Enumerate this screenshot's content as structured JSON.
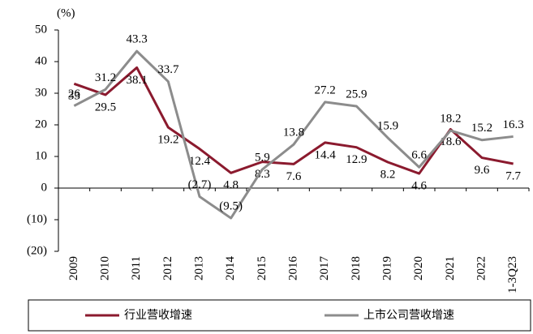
{
  "chart_data": {
    "type": "line",
    "y_label": "(%)",
    "categories": [
      "2009",
      "2010",
      "2011",
      "2012",
      "2013",
      "2014",
      "2015",
      "2016",
      "2017",
      "2018",
      "2019",
      "2020",
      "2021",
      "2022",
      "1-3Q23"
    ],
    "series": [
      {
        "name": "行业营收增速",
        "color": "#8b1a2e",
        "values": [
          33,
          29.5,
          38.1,
          19.2,
          12.4,
          4.8,
          8.3,
          7.6,
          14.4,
          12.9,
          8.2,
          4.6,
          18.6,
          9.6,
          7.7
        ]
      },
      {
        "name": "上市公司营收增速",
        "color": "#8c8c8c",
        "values": [
          26,
          31.2,
          43.3,
          33.7,
          -2.7,
          -9.5,
          5.9,
          13.8,
          27.2,
          25.9,
          15.9,
          6.6,
          18.2,
          15.2,
          16.3
        ],
        "value_labels": [
          "26",
          "31.2",
          "43.3",
          "33.7",
          "(2.7)",
          "(9.5)",
          "5.9",
          "13.8",
          "27.2",
          "25.9",
          "15.9",
          "6.6",
          "18.2",
          "15.2",
          "16.3"
        ]
      }
    ],
    "ylim": [
      -20,
      50
    ],
    "yticks": [
      {
        "value": -20,
        "label": "(20)"
      },
      {
        "value": -10,
        "label": "(10)"
      },
      0,
      10,
      20,
      30,
      40,
      50
    ],
    "grid": false
  }
}
